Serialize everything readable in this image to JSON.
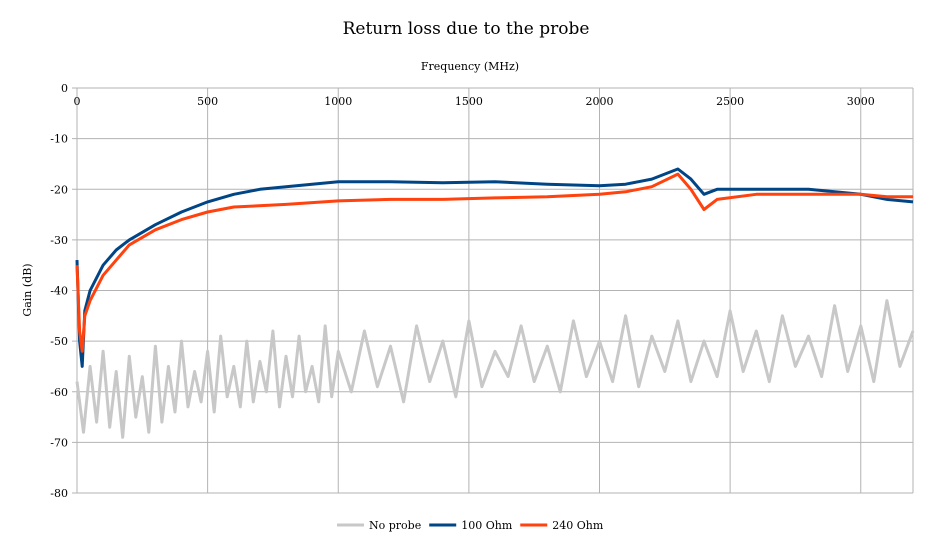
{
  "chart_data": {
    "type": "line",
    "title": "Return loss due to the probe",
    "xlabel": "Frequency (MHz)",
    "ylabel": "Gain (dB)",
    "xlim": [
      0,
      3200
    ],
    "ylim": [
      -80,
      0
    ],
    "xticks": [
      0,
      500,
      1000,
      1500,
      2000,
      2500,
      3000
    ],
    "yticks": [
      0,
      -10,
      -20,
      -30,
      -40,
      -50,
      -60,
      -70,
      -80
    ],
    "x_axis_position": "top",
    "grid": true,
    "legend": "bottom",
    "series": [
      {
        "name": "No probe",
        "color": "#c8c8c8",
        "x": [
          0,
          25,
          50,
          75,
          100,
          125,
          150,
          175,
          200,
          225,
          250,
          275,
          300,
          325,
          350,
          375,
          400,
          425,
          450,
          475,
          500,
          525,
          550,
          575,
          600,
          625,
          650,
          675,
          700,
          725,
          750,
          775,
          800,
          825,
          850,
          875,
          900,
          925,
          950,
          975,
          1000,
          1050,
          1100,
          1150,
          1200,
          1250,
          1300,
          1350,
          1400,
          1450,
          1500,
          1550,
          1600,
          1650,
          1700,
          1750,
          1800,
          1850,
          1900,
          1950,
          2000,
          2050,
          2100,
          2150,
          2200,
          2250,
          2300,
          2350,
          2400,
          2450,
          2500,
          2550,
          2600,
          2650,
          2700,
          2750,
          2800,
          2850,
          2900,
          2950,
          3000,
          3050,
          3100,
          3150,
          3200
        ],
        "y": [
          -58,
          -68,
          -55,
          -66,
          -52,
          -67,
          -56,
          -69,
          -53,
          -65,
          -57,
          -68,
          -51,
          -66,
          -55,
          -64,
          -50,
          -63,
          -56,
          -62,
          -52,
          -64,
          -49,
          -61,
          -55,
          -63,
          -50,
          -62,
          -54,
          -60,
          -48,
          -63,
          -53,
          -61,
          -49,
          -60,
          -55,
          -62,
          -47,
          -61,
          -52,
          -60,
          -48,
          -59,
          -51,
          -62,
          -47,
          -58,
          -50,
          -61,
          -46,
          -59,
          -52,
          -57,
          -47,
          -58,
          -51,
          -60,
          -46,
          -57,
          -50,
          -58,
          -45,
          -59,
          -49,
          -56,
          -46,
          -58,
          -50,
          -57,
          -44,
          -56,
          -48,
          -58,
          -45,
          -55,
          -49,
          -57,
          -43,
          -56,
          -47,
          -58,
          -42,
          -55,
          -48
        ]
      },
      {
        "name": "100 Ohm",
        "color": "#004586",
        "x": [
          0,
          10,
          20,
          30,
          50,
          100,
          150,
          200,
          300,
          400,
          500,
          600,
          700,
          800,
          900,
          1000,
          1200,
          1400,
          1600,
          1800,
          2000,
          2100,
          2200,
          2300,
          2350,
          2400,
          2450,
          2600,
          2800,
          3000,
          3100,
          3200
        ],
        "y": [
          -34,
          -50,
          -55,
          -44,
          -40,
          -35,
          -32,
          -30,
          -27,
          -24.5,
          -22.5,
          -21,
          -20,
          -19.5,
          -19,
          -18.5,
          -18.5,
          -18.7,
          -18.5,
          -19,
          -19.3,
          -19,
          -18,
          -16,
          -18,
          -21,
          -20,
          -20,
          -20,
          -21,
          -22,
          -22.5
        ]
      },
      {
        "name": "240 Ohm",
        "color": "#ff420e",
        "x": [
          0,
          10,
          20,
          30,
          50,
          100,
          200,
          300,
          400,
          500,
          600,
          800,
          1000,
          1200,
          1400,
          1600,
          1800,
          2000,
          2100,
          2200,
          2300,
          2350,
          2400,
          2450,
          2600,
          2800,
          3000,
          3100,
          3200
        ],
        "y": [
          -35,
          -48,
          -52,
          -45,
          -42,
          -37,
          -31,
          -28,
          -26,
          -24.5,
          -23.5,
          -23,
          -22.3,
          -22,
          -22,
          -21.7,
          -21.5,
          -21,
          -20.5,
          -19.5,
          -17,
          -20,
          -24,
          -22,
          -21,
          -21,
          -21,
          -21.5,
          -21.5
        ]
      }
    ]
  }
}
